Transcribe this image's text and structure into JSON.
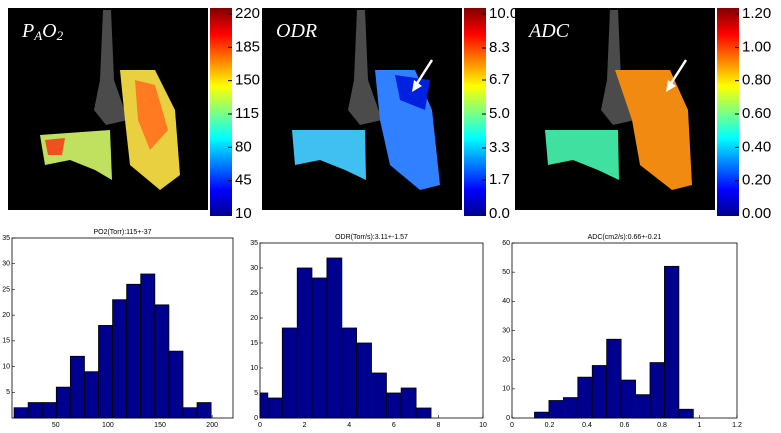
{
  "panels": [
    {
      "label": [
        "P",
        "A",
        "O",
        "2"
      ],
      "clim": [
        10,
        220
      ],
      "ticks": [
        220,
        185,
        150,
        115,
        80,
        45,
        10
      ]
    },
    {
      "label": [
        "ODR"
      ],
      "clim": [
        0,
        10
      ],
      "ticks": [
        {
          "value": 10,
          "label": "10.0"
        },
        {
          "value": 8.3,
          "label": "8.3"
        },
        {
          "value": 6.7,
          "label": "6.7"
        },
        {
          "value": 5,
          "label": "5.0"
        },
        {
          "value": 3.3,
          "label": "3.3"
        },
        {
          "value": 1.7,
          "label": "1.7"
        },
        {
          "value": 0,
          "label": "0.0"
        }
      ]
    },
    {
      "label": [
        "ADC"
      ],
      "clim": [
        0,
        1.2
      ],
      "ticks": [
        {
          "value": 1.2,
          "label": "1.20"
        },
        {
          "value": 1,
          "label": "1.00"
        },
        {
          "value": 0.8,
          "label": "0.80"
        },
        {
          "value": 0.6,
          "label": "0.60"
        },
        {
          "value": 0.4,
          "label": "0.40"
        },
        {
          "value": 0.2,
          "label": "0.20"
        },
        {
          "value": 0,
          "label": "0.00"
        }
      ]
    }
  ],
  "chart_data": [
    {
      "type": "histogram",
      "title": "PO2(Torr):115+-37",
      "color": "#00008f",
      "bins": [
        10,
        23.5,
        37,
        50.5,
        64,
        77.5,
        91,
        104.5,
        118,
        131.5,
        145,
        158.5,
        172,
        185.5,
        199
      ],
      "values": [
        2,
        3,
        3,
        6,
        12,
        9,
        18,
        23,
        26,
        28,
        22,
        13,
        2,
        3
      ],
      "xlim": [
        8,
        220
      ],
      "xticks": [
        50,
        100,
        150,
        200
      ],
      "ylim": [
        0,
        35
      ],
      "yticks": [
        5,
        10,
        15,
        20,
        25,
        30,
        35
      ]
    },
    {
      "type": "histogram",
      "title": "ODR(Torr/s):3.11+-1.57",
      "color": "#00008f",
      "bins": [
        0,
        0.35,
        1,
        1.67,
        2.33,
        3,
        3.67,
        4.33,
        5,
        5.67,
        6.33,
        7,
        7.67
      ],
      "values": [
        5,
        4,
        18,
        30,
        28,
        32,
        18,
        15,
        9,
        5,
        6,
        2
      ],
      "xlim": [
        0,
        10
      ],
      "xticks": [
        0,
        2,
        4,
        6,
        8,
        10
      ],
      "ylim": [
        0,
        35
      ],
      "yticks": [
        0,
        5,
        10,
        15,
        20,
        25,
        30,
        35
      ]
    },
    {
      "type": "histogram",
      "title": "ADC(cm2/s):0.66+-0.21",
      "color": "#00008f",
      "bins": [
        0.12,
        0.197,
        0.274,
        0.351,
        0.428,
        0.505,
        0.582,
        0.659,
        0.736,
        0.813,
        0.89,
        0.967
      ],
      "values": [
        2,
        6,
        7,
        14,
        18,
        27,
        13,
        8,
        19,
        52,
        3
      ],
      "xlim": [
        0,
        1.2
      ],
      "xticks": [
        0,
        0.2,
        0.4,
        0.6,
        0.8,
        1,
        1.2
      ],
      "ylim": [
        0,
        60
      ],
      "yticks": [
        0,
        10,
        20,
        30,
        40,
        50,
        60
      ]
    }
  ]
}
